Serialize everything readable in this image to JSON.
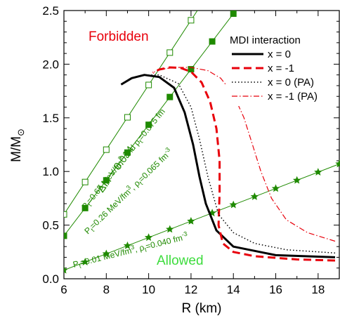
{
  "chart_data": {
    "type": "line",
    "xlabel": "R (km)",
    "ylabel_main": "M/M",
    "ylabel_sub": "⊙",
    "xlim": [
      6,
      19
    ],
    "ylim": [
      0,
      2.5
    ],
    "xticks": [
      6,
      8,
      10,
      12,
      14,
      16,
      18
    ],
    "xtick_labels": [
      "6",
      "8",
      "10",
      "12",
      "14",
      "16",
      "18"
    ],
    "yticks": [
      0.0,
      0.5,
      1.0,
      1.5,
      2.0,
      2.5
    ],
    "ytick_labels": [
      "0.0",
      "0.5",
      "1.0",
      "1.5",
      "2.0",
      "2.5"
    ],
    "legend_placement": "top-right",
    "legend_title": "MDI interaction",
    "series": [
      {
        "name": "x = 0",
        "color": "#000000",
        "style": "solid",
        "points": [
          [
            18.8,
            0.2
          ],
          [
            16,
            0.22
          ],
          [
            14,
            0.3
          ],
          [
            13.2,
            0.45
          ],
          [
            12.7,
            0.7
          ],
          [
            12.4,
            0.95
          ],
          [
            12.1,
            1.25
          ],
          [
            11.7,
            1.55
          ],
          [
            11.2,
            1.78
          ],
          [
            10.5,
            1.88
          ],
          [
            9.8,
            1.9
          ],
          [
            9.2,
            1.87
          ],
          [
            8.7,
            1.81
          ]
        ]
      },
      {
        "name": "x = -1",
        "color": "#e8000b",
        "style": "dashed",
        "points": [
          [
            18.8,
            0.17
          ],
          [
            17,
            0.18
          ],
          [
            15,
            0.21
          ],
          [
            14,
            0.25
          ],
          [
            13.5,
            0.33
          ],
          [
            13.3,
            0.5
          ],
          [
            13.35,
            0.8
          ],
          [
            13.35,
            1.1
          ],
          [
            13.2,
            1.4
          ],
          [
            12.9,
            1.65
          ],
          [
            12.5,
            1.83
          ],
          [
            12,
            1.93
          ],
          [
            11.5,
            1.965
          ],
          [
            11,
            1.97
          ],
          [
            10.5,
            1.95
          ],
          [
            10.2,
            1.92
          ]
        ]
      },
      {
        "name": "x = 0  (PA)",
        "color": "#000000",
        "style": "dotted",
        "points": [
          [
            18.8,
            0.24
          ],
          [
            16.5,
            0.27
          ],
          [
            15,
            0.33
          ],
          [
            14,
            0.43
          ],
          [
            13.3,
            0.6
          ],
          [
            12.8,
            0.95
          ],
          [
            12.4,
            1.3
          ],
          [
            12,
            1.6
          ],
          [
            11.4,
            1.82
          ],
          [
            10.5,
            1.9
          ],
          [
            9.8,
            1.9
          ],
          [
            9.2,
            1.87
          ],
          [
            8.7,
            1.81
          ]
        ]
      },
      {
        "name": "x = -1 (PA)",
        "color": "#e8000b",
        "style": "dashdot",
        "points": [
          [
            18.8,
            0.35
          ],
          [
            17.5,
            0.43
          ],
          [
            16.5,
            0.55
          ],
          [
            15.8,
            0.75
          ],
          [
            15.3,
            1.0
          ],
          [
            14.9,
            1.25
          ],
          [
            14.5,
            1.5
          ],
          [
            14,
            1.72
          ],
          [
            13.4,
            1.87
          ],
          [
            12.8,
            1.94
          ],
          [
            12,
            1.97
          ],
          [
            11.2,
            1.97
          ],
          [
            10.5,
            1.95
          ],
          [
            10.2,
            1.92
          ]
        ]
      }
    ],
    "causality_lines": [
      {
        "x": [
          6,
          12.3
        ],
        "y": [
          0.6,
          2.5
        ],
        "marker": "square-open",
        "marker_x": [
          6,
          7,
          8,
          9,
          10,
          11,
          12
        ]
      },
      {
        "x": [
          6,
          14.5
        ],
        "y": [
          0.4,
          2.6
        ],
        "marker": "square-filled",
        "marker_x": [
          6,
          7,
          8,
          9,
          10,
          11,
          12,
          13,
          14
        ]
      },
      {
        "x": [
          6,
          19
        ],
        "y": [
          0.08,
          1.07
        ],
        "marker": "star",
        "marker_x": [
          6,
          7,
          8,
          9,
          10,
          11,
          12,
          13,
          14,
          15,
          16,
          17,
          18,
          19
        ]
      }
    ],
    "line_color": "#1f8a00",
    "annotations": {
      "forbidden": "Forbidden",
      "allowed": "Allowed",
      "delta_label": "ΔI/I = 0.014",
      "p1_label": "P",
      "p1_sub": "t",
      "p1_rest": "=0.65 MeV/fm",
      "p1_exp": "3",
      "p1_mid": " and ρ",
      "p1_rho_sub": "t",
      "p1_tail": "=0.075 fm",
      "p1_tail_exp": "-3",
      "p2_label": "P",
      "p2_sub": "t",
      "p2_rest": "=0.26 MeV/fm",
      "p2_exp": "3",
      "p2_mid": ", ρ",
      "p2_rho_sub": "t",
      "p2_tail": "=0.065 fm",
      "p2_tail_exp": "-3",
      "p3_label": "P",
      "p3_sub": "t",
      "p3_rest": "=0.01 MeV/fm",
      "p3_exp": "3",
      "p3_mid": ", ρ",
      "p3_rho_sub": "t",
      "p3_tail": "=0.040 fm",
      "p3_tail_exp": "-3"
    },
    "colors": {
      "forbidden": "#e8000b",
      "allowed": "#3ddc3d",
      "green_line": "#1f8a00"
    }
  }
}
